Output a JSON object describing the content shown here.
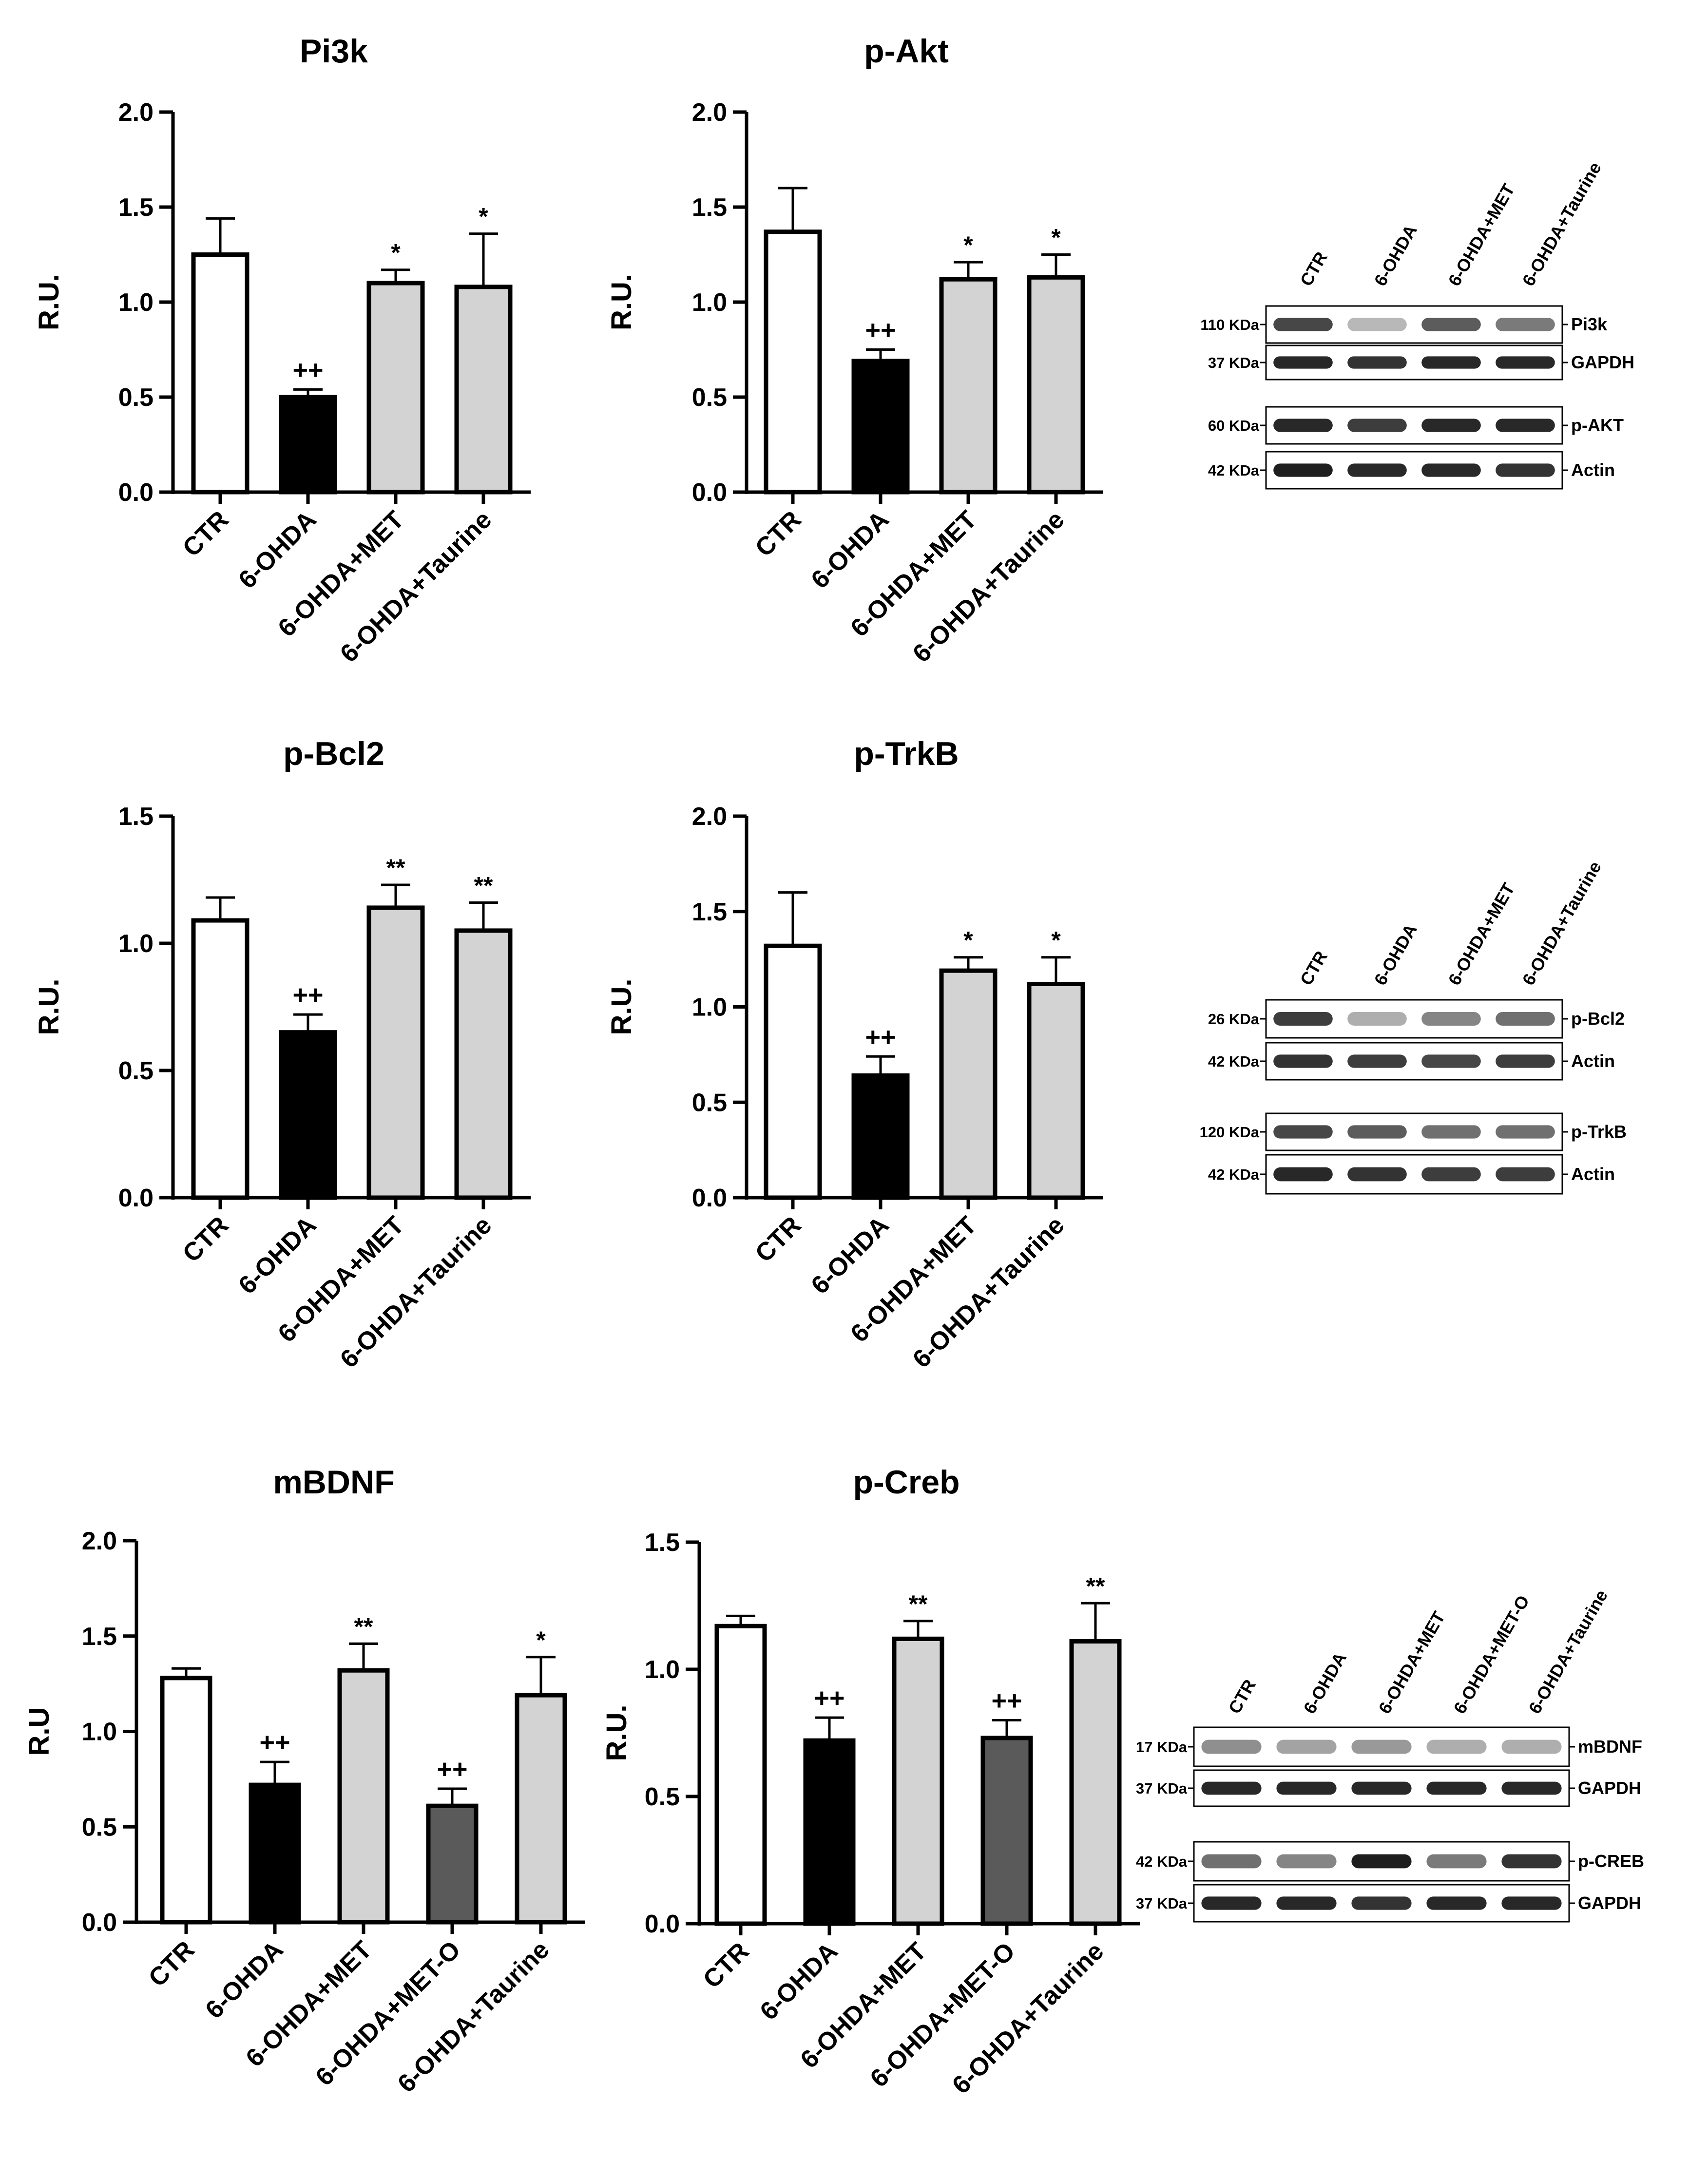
{
  "chart_data": [
    {
      "type": "bar",
      "title": "Pi3k",
      "ylabel": "R.U.",
      "ylim": [
        0,
        2.0
      ],
      "yticks": [
        "0.0",
        "0.5",
        "1.0",
        "1.5",
        "2.0"
      ],
      "categories": [
        "CTR",
        "6-OHDA",
        "6-OHDA+MET",
        "6-OHDA+Taurine"
      ],
      "values": [
        1.25,
        0.5,
        1.1,
        1.08
      ],
      "errors": [
        0.19,
        0.04,
        0.07,
        0.28
      ],
      "significance": [
        "",
        "++",
        "*",
        "*"
      ],
      "fills": [
        "#ffffff",
        "#000000",
        "#d3d3d3",
        "#d3d3d3"
      ]
    },
    {
      "type": "bar",
      "title": "p-Akt",
      "ylabel": "R.U.",
      "ylim": [
        0,
        2.0
      ],
      "yticks": [
        "0.0",
        "0.5",
        "1.0",
        "1.5",
        "2.0"
      ],
      "categories": [
        "CTR",
        "6-OHDA",
        "6-OHDA+MET",
        "6-OHDA+Taurine"
      ],
      "values": [
        1.37,
        0.69,
        1.12,
        1.13
      ],
      "errors": [
        0.23,
        0.06,
        0.09,
        0.12
      ],
      "significance": [
        "",
        "++",
        "*",
        "*"
      ],
      "fills": [
        "#ffffff",
        "#000000",
        "#d3d3d3",
        "#d3d3d3"
      ]
    },
    {
      "type": "bar",
      "title": "p-Bcl2",
      "ylabel": "R.U.",
      "ylim": [
        0,
        1.5
      ],
      "yticks": [
        "0.0",
        "0.5",
        "1.0",
        "1.5"
      ],
      "categories": [
        "CTR",
        "6-OHDA",
        "6-OHDA+MET",
        "6-OHDA+Taurine"
      ],
      "values": [
        1.09,
        0.65,
        1.14,
        1.05
      ],
      "errors": [
        0.09,
        0.07,
        0.09,
        0.11
      ],
      "significance": [
        "",
        "++",
        "**",
        "**"
      ],
      "fills": [
        "#ffffff",
        "#000000",
        "#d3d3d3",
        "#d3d3d3"
      ]
    },
    {
      "type": "bar",
      "title": "p-TrkB",
      "ylabel": "R.U.",
      "ylim": [
        0,
        2.0
      ],
      "yticks": [
        "0.0",
        "0.5",
        "1.0",
        "1.5",
        "2.0"
      ],
      "categories": [
        "CTR",
        "6-OHDA",
        "6-OHDA+MET",
        "6-OHDA+Taurine"
      ],
      "values": [
        1.32,
        0.64,
        1.19,
        1.12
      ],
      "errors": [
        0.28,
        0.1,
        0.07,
        0.14
      ],
      "significance": [
        "",
        "++",
        "*",
        "*"
      ],
      "fills": [
        "#ffffff",
        "#000000",
        "#d3d3d3",
        "#d3d3d3"
      ]
    },
    {
      "type": "bar",
      "title": "mBDNF",
      "ylabel": "R.U",
      "ylim": [
        0,
        2.0
      ],
      "yticks": [
        "0.0",
        "0.5",
        "1.0",
        "1.5",
        "2.0"
      ],
      "categories": [
        "CTR",
        "6-OHDA",
        "6-OHDA+MET",
        "6-OHDA+MET-O",
        "6-OHDA+Taurine"
      ],
      "values": [
        1.28,
        0.72,
        1.32,
        0.61,
        1.19
      ],
      "errors": [
        0.05,
        0.12,
        0.14,
        0.09,
        0.2
      ],
      "significance": [
        "",
        "++",
        "**",
        "++",
        "*"
      ],
      "fills": [
        "#ffffff",
        "#000000",
        "#d3d3d3",
        "#5a5a5a",
        "#d3d3d3"
      ]
    },
    {
      "type": "bar",
      "title": "p-Creb",
      "ylabel": "R.U.",
      "ylim": [
        0,
        1.5
      ],
      "yticks": [
        "0.0",
        "0.5",
        "1.0",
        "1.5"
      ],
      "categories": [
        "CTR",
        "6-OHDA",
        "6-OHDA+MET",
        "6-OHDA+MET-O",
        "6-OHDA+Taurine"
      ],
      "values": [
        1.17,
        0.72,
        1.12,
        0.73,
        1.11
      ],
      "errors": [
        0.04,
        0.09,
        0.07,
        0.07,
        0.15
      ],
      "significance": [
        "",
        "++",
        "**",
        "++",
        "**"
      ],
      "fills": [
        "#ffffff",
        "#000000",
        "#d3d3d3",
        "#5a5a5a",
        "#d3d3d3"
      ]
    }
  ],
  "blots": [
    {
      "lanes": [
        "CTR",
        "6-OHDA",
        "6-OHDA+MET",
        "6-OHDA+Taurine"
      ],
      "rows": [
        {
          "kda": "110 KDa",
          "protein": "Pi3k",
          "intensity": [
            0.8,
            0.25,
            0.7,
            0.55
          ]
        },
        {
          "kda": "37 KDa",
          "protein": "GAPDH",
          "intensity": [
            0.95,
            0.9,
            0.95,
            0.95
          ]
        },
        {
          "kda": "60 KDa",
          "protein": "p-AKT",
          "intensity": [
            0.95,
            0.85,
            0.95,
            0.95
          ]
        },
        {
          "kda": "42 KDa",
          "protein": "Actin",
          "intensity": [
            1.0,
            0.95,
            0.95,
            0.9
          ]
        }
      ]
    },
    {
      "lanes": [
        "CTR",
        "6-OHDA",
        "6-OHDA+MET",
        "6-OHDA+Taurine"
      ],
      "rows": [
        {
          "kda": "26 KDa",
          "protein": "p-Bcl2",
          "intensity": [
            0.85,
            0.3,
            0.5,
            0.6
          ]
        },
        {
          "kda": "42 KDa",
          "protein": "Actin",
          "intensity": [
            0.9,
            0.85,
            0.8,
            0.85
          ]
        },
        {
          "kda": "120 KDa",
          "protein": "p-TrkB",
          "intensity": [
            0.8,
            0.7,
            0.6,
            0.6
          ]
        },
        {
          "kda": "42 KDa",
          "protein": "Actin",
          "intensity": [
            0.95,
            0.9,
            0.85,
            0.85
          ]
        }
      ]
    },
    {
      "lanes": [
        "CTR",
        "6-OHDA",
        "6-OHDA+MET",
        "6-OHDA+MET-O",
        "6-OHDA+Taurine"
      ],
      "rows": [
        {
          "kda": "17 KDa",
          "protein": "mBDNF",
          "intensity": [
            0.45,
            0.35,
            0.4,
            0.3,
            0.3
          ]
        },
        {
          "kda": "37 KDa",
          "protein": "GAPDH",
          "intensity": [
            0.95,
            0.95,
            0.95,
            0.95,
            0.95
          ]
        },
        {
          "kda": "42 KDa",
          "protein": "p-CREB",
          "intensity": [
            0.6,
            0.5,
            1.0,
            0.55,
            0.9
          ]
        },
        {
          "kda": "37 KDa",
          "protein": "GAPDH",
          "intensity": [
            0.95,
            0.95,
            0.9,
            0.95,
            0.95
          ]
        }
      ]
    }
  ]
}
